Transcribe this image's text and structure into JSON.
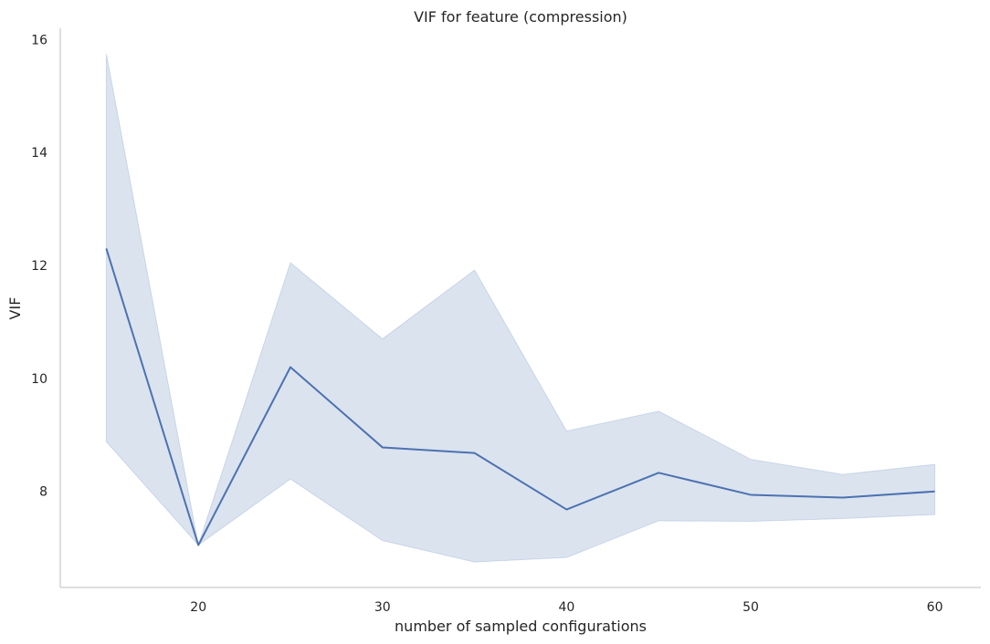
{
  "chart_data": {
    "type": "line",
    "title": "VIF for feature (compression)",
    "xlabel": "number of sampled configurations",
    "ylabel": "VIF",
    "xlim": [
      12.5,
      62.5
    ],
    "ylim": [
      6.3,
      16.2
    ],
    "xticks": [
      20,
      30,
      40,
      50,
      60
    ],
    "yticks": [
      8,
      10,
      12,
      14,
      16
    ],
    "grid": false,
    "series": [
      {
        "x": [
          15,
          20,
          25,
          30,
          35,
          40,
          45,
          50,
          55,
          60
        ],
        "y": [
          12.3,
          7.05,
          10.2,
          8.78,
          8.68,
          7.68,
          8.33,
          7.94,
          7.89,
          8.0
        ],
        "ci_upper": [
          15.75,
          7.05,
          12.05,
          10.7,
          11.92,
          9.07,
          9.42,
          8.57,
          8.3,
          8.48
        ],
        "ci_lower": [
          8.88,
          7.05,
          8.22,
          7.13,
          6.75,
          6.83,
          7.48,
          7.47,
          7.52,
          7.59
        ],
        "color": "#4c72b0",
        "band_color": "#4c72b0"
      }
    ]
  }
}
